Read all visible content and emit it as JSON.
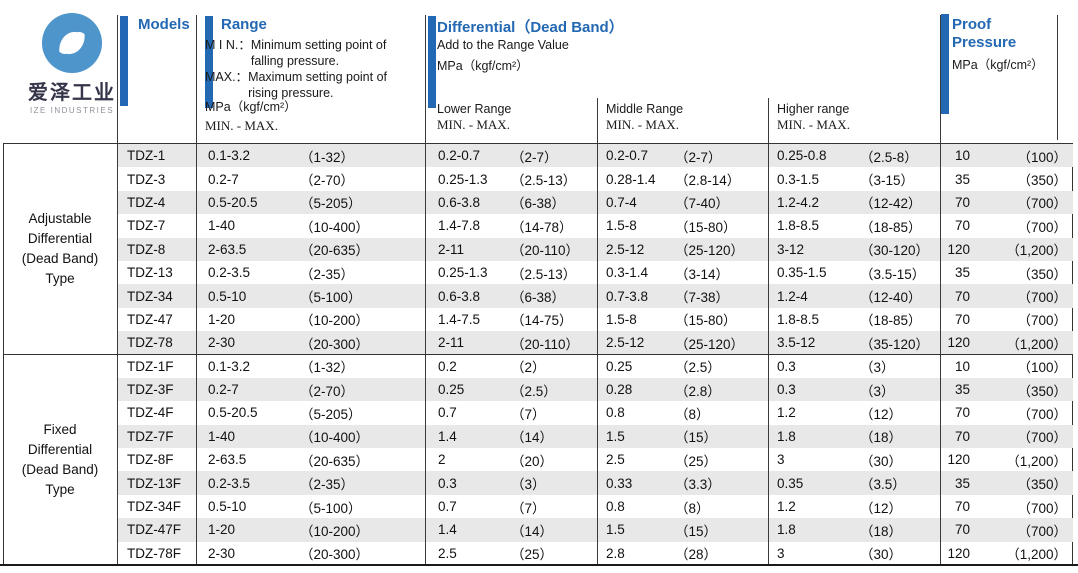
{
  "colors": {
    "accent_blue": "#2368b2",
    "row_shade": "#e8e8e8",
    "logo_blue": "#4e95cc",
    "grid_line": "#3a3a3a"
  },
  "logo": {
    "cn": "爱泽工业",
    "en": "IZE INDUSTRIES"
  },
  "header": {
    "models_title": "Models",
    "range": {
      "title": "Range",
      "min_label": "M I N.：",
      "min_line1": "Minimum setting point of",
      "min_line2": "falling pressure.",
      "max_label": "MAX.：",
      "max_line1": "Maximum setting point of",
      "max_line2": "rising pressure.",
      "unit": "MPa（kgf/cm²）",
      "minmax": "MIN. - MAX."
    },
    "differential": {
      "title": "Differential（Dead Band）",
      "subtitle": "Add to the Range Value",
      "unit": "MPa（kgf/cm²）",
      "columns": [
        {
          "name": "Lower Range",
          "minmax": "MIN. - MAX."
        },
        {
          "name": "Middle Range",
          "minmax": "MIN. - MAX."
        },
        {
          "name": "Higher range",
          "minmax": "MIN. - MAX."
        }
      ]
    },
    "proof": {
      "title_line1": "Proof",
      "title_line2": "Pressure",
      "unit": "MPa（kgf/cm²）"
    }
  },
  "table": {
    "sections": [
      {
        "label": "Adjustable\nDifferential\n(Dead Band)\nType"
      },
      {
        "label": "Fixed\nDifferential\n(Dead Band)\nType"
      }
    ],
    "rows": [
      {
        "model": "TDZ-1",
        "range": [
          "0.1-3.2",
          "（1-32）"
        ],
        "lower": [
          "0.2-0.7",
          "（2-7）"
        ],
        "middle": [
          "0.2-0.7",
          "（2-7）"
        ],
        "higher": [
          "0.25-0.8",
          "（2.5-8）"
        ],
        "proof": [
          "10",
          "（100）"
        ]
      },
      {
        "model": "TDZ-3",
        "range": [
          "0.2-7",
          "（2-70）"
        ],
        "lower": [
          "0.25-1.3",
          "（2.5-13）"
        ],
        "middle": [
          "0.28-1.4",
          "（2.8-14）"
        ],
        "higher": [
          "0.3-1.5",
          "（3-15）"
        ],
        "proof": [
          "35",
          "（350）"
        ]
      },
      {
        "model": "TDZ-4",
        "range": [
          "0.5-20.5",
          "（5-205）"
        ],
        "lower": [
          "0.6-3.8",
          "（6-38）"
        ],
        "middle": [
          "0.7-4",
          "（7-40）"
        ],
        "higher": [
          "1.2-4.2",
          "（12-42）"
        ],
        "proof": [
          "70",
          "（700）"
        ]
      },
      {
        "model": "TDZ-7",
        "range": [
          "1-40",
          "（10-400）"
        ],
        "lower": [
          "1.4-7.8",
          "（14-78）"
        ],
        "middle": [
          "1.5-8",
          "（15-80）"
        ],
        "higher": [
          "1.8-8.5",
          "（18-85）"
        ],
        "proof": [
          "70",
          "（700）"
        ]
      },
      {
        "model": "TDZ-8",
        "range": [
          "2-63.5",
          "（20-635）"
        ],
        "lower": [
          "2-11",
          "（20-110）"
        ],
        "middle": [
          "2.5-12",
          "（25-120）"
        ],
        "higher": [
          "3-12",
          "（30-120）"
        ],
        "proof": [
          "120",
          "（1,200）"
        ]
      },
      {
        "model": "TDZ-13",
        "range": [
          "0.2-3.5",
          "（2-35）"
        ],
        "lower": [
          "0.25-1.3",
          "（2.5-13）"
        ],
        "middle": [
          "0.3-1.4",
          "（3-14）"
        ],
        "higher": [
          "0.35-1.5",
          "（3.5-15）"
        ],
        "proof": [
          "35",
          "（350）"
        ]
      },
      {
        "model": "TDZ-34",
        "range": [
          "0.5-10",
          "（5-100）"
        ],
        "lower": [
          "0.6-3.8",
          "（6-38）"
        ],
        "middle": [
          "0.7-3.8",
          "（7-38）"
        ],
        "higher": [
          "1.2-4",
          "（12-40）"
        ],
        "proof": [
          "70",
          "（700）"
        ]
      },
      {
        "model": "TDZ-47",
        "range": [
          "1-20",
          "（10-200）"
        ],
        "lower": [
          "1.4-7.5",
          "（14-75）"
        ],
        "middle": [
          "1.5-8",
          "（15-80）"
        ],
        "higher": [
          "1.8-8.5",
          "（18-85）"
        ],
        "proof": [
          "70",
          "（700）"
        ]
      },
      {
        "model": "TDZ-78",
        "range": [
          "2-30",
          "（20-300）"
        ],
        "lower": [
          "2-11",
          "（20-110）"
        ],
        "middle": [
          "2.5-12",
          "（25-120）"
        ],
        "higher": [
          "3.5-12",
          "（35-120）"
        ],
        "proof": [
          "120",
          "（1,200）"
        ]
      },
      {
        "model": "TDZ-1F",
        "range": [
          "0.1-3.2",
          "（1-32）"
        ],
        "lower": [
          "0.2",
          "（2）"
        ],
        "middle": [
          "0.25",
          "（2.5）"
        ],
        "higher": [
          "0.3",
          "（3）"
        ],
        "proof": [
          "10",
          "（100）"
        ]
      },
      {
        "model": "TDZ-3F",
        "range": [
          "0.2-7",
          "（2-70）"
        ],
        "lower": [
          "0.25",
          "（2.5）"
        ],
        "middle": [
          "0.28",
          "（2.8）"
        ],
        "higher": [
          "0.3",
          "（3）"
        ],
        "proof": [
          "35",
          "（350）"
        ]
      },
      {
        "model": "TDZ-4F",
        "range": [
          "0.5-20.5",
          "（5-205）"
        ],
        "lower": [
          "0.7",
          "（7）"
        ],
        "middle": [
          "0.8",
          "（8）"
        ],
        "higher": [
          "1.2",
          "（12）"
        ],
        "proof": [
          "70",
          "（700）"
        ]
      },
      {
        "model": "TDZ-7F",
        "range": [
          "1-40",
          "（10-400）"
        ],
        "lower": [
          "1.4",
          "（14）"
        ],
        "middle": [
          "1.5",
          "（15）"
        ],
        "higher": [
          "1.8",
          "（18）"
        ],
        "proof": [
          "70",
          "（700）"
        ]
      },
      {
        "model": "TDZ-8F",
        "range": [
          "2-63.5",
          "（20-635）"
        ],
        "lower": [
          "2",
          "（20）"
        ],
        "middle": [
          "2.5",
          "（25）"
        ],
        "higher": [
          "3",
          "（30）"
        ],
        "proof": [
          "120",
          "（1,200）"
        ]
      },
      {
        "model": "TDZ-13F",
        "range": [
          "0.2-3.5",
          "（2-35）"
        ],
        "lower": [
          "0.3",
          "（3）"
        ],
        "middle": [
          "0.33",
          "（3.3）"
        ],
        "higher": [
          "0.35",
          "（3.5）"
        ],
        "proof": [
          "35",
          "（350）"
        ]
      },
      {
        "model": "TDZ-34F",
        "range": [
          "0.5-10",
          "（5-100）"
        ],
        "lower": [
          "0.7",
          "（7）"
        ],
        "middle": [
          "0.8",
          "（8）"
        ],
        "higher": [
          "1.2",
          "（12）"
        ],
        "proof": [
          "70",
          "（700）"
        ]
      },
      {
        "model": "TDZ-47F",
        "range": [
          "1-20",
          "（10-200）"
        ],
        "lower": [
          "1.4",
          "（14）"
        ],
        "middle": [
          "1.5",
          "（15）"
        ],
        "higher": [
          "1.8",
          "（18）"
        ],
        "proof": [
          "70",
          "（700）"
        ]
      },
      {
        "model": "TDZ-78F",
        "range": [
          "2-30",
          "（20-300）"
        ],
        "lower": [
          "2.5",
          "（25）"
        ],
        "middle": [
          "2.8",
          "（28）"
        ],
        "higher": [
          "3",
          "（30）"
        ],
        "proof": [
          "120",
          "（1,200）"
        ]
      }
    ]
  }
}
